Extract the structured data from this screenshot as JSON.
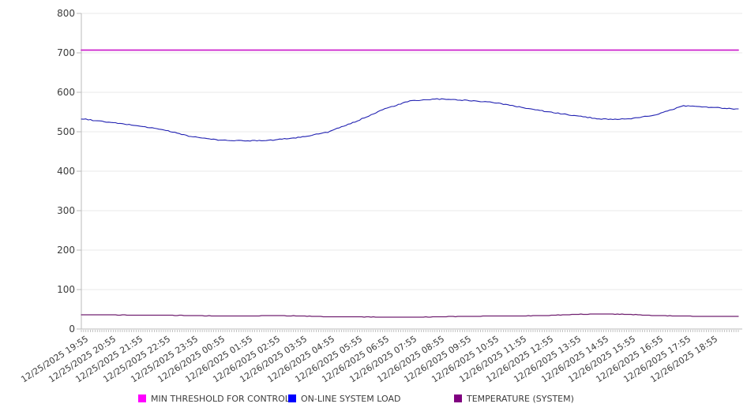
{
  "chart_data": {
    "type": "line",
    "title": "",
    "xlabel": "",
    "ylabel": "",
    "ylim": [
      0,
      800
    ],
    "y_ticks": [
      0,
      100,
      200,
      300,
      400,
      500,
      600,
      700,
      800
    ],
    "grid": "horizontal",
    "legend_position": "bottom",
    "sample_interval_minutes": 5,
    "x_labels": [
      "12/25/2025 19:55",
      "12/25/2025 20:55",
      "12/25/2025 21:55",
      "12/25/2025 22:55",
      "12/25/2025 23:55",
      "12/26/2025 00:55",
      "12/26/2025 01:55",
      "12/26/2025 02:55",
      "12/26/2025 03:55",
      "12/26/2025 04:55",
      "12/26/2025 05:55",
      "12/26/2025 06:55",
      "12/26/2025 07:55",
      "12/26/2025 08:55",
      "12/26/2025 09:55",
      "12/26/2025 10:55",
      "12/26/2025 11:55",
      "12/26/2025 12:55",
      "12/26/2025 13:55",
      "12/26/2025 14:55",
      "12/26/2025 15:55",
      "12/26/2025 16:55",
      "12/26/2025 17:55",
      "12/26/2025 18:55"
    ],
    "series": [
      {
        "name": "MIN THRESHOLD FOR CONTROL",
        "type": "constant",
        "constant_value": 707,
        "line_color": "#cc22cc",
        "swatch_color": "#ff00ff",
        "line_width": 1.8
      },
      {
        "name": "ON-LINE SYSTEM LOAD",
        "type": "noisy-line",
        "hourly_values": [
          533,
          524,
          516,
          505,
          488,
          479,
          477,
          479,
          486,
          499,
          525,
          556,
          578,
          583,
          580,
          575,
          563,
          551,
          541,
          532,
          532,
          543,
          566,
          562,
          557
        ],
        "line_color": "#2222b2",
        "swatch_color": "#0000ff",
        "line_width": 1.1,
        "noise_amplitude": 2.2
      },
      {
        "name": "TEMPERATURE (SYSTEM)",
        "type": "stepped-line",
        "hourly_values": [
          36,
          36,
          35,
          35,
          34,
          33,
          33,
          34,
          33,
          31,
          31,
          30,
          30,
          31,
          32,
          33,
          33,
          34,
          37,
          38,
          37,
          34,
          33,
          32,
          32
        ],
        "line_color": "#702070",
        "swatch_color": "#800080",
        "line_width": 1.2,
        "noise_amplitude": 0.8
      }
    ]
  },
  "colors": {
    "grid_line": "#e8e8e8",
    "axis_line": "#bbbbbb",
    "minor_tick": "#aaaaaa",
    "tick_text": "#3c3c3c"
  }
}
